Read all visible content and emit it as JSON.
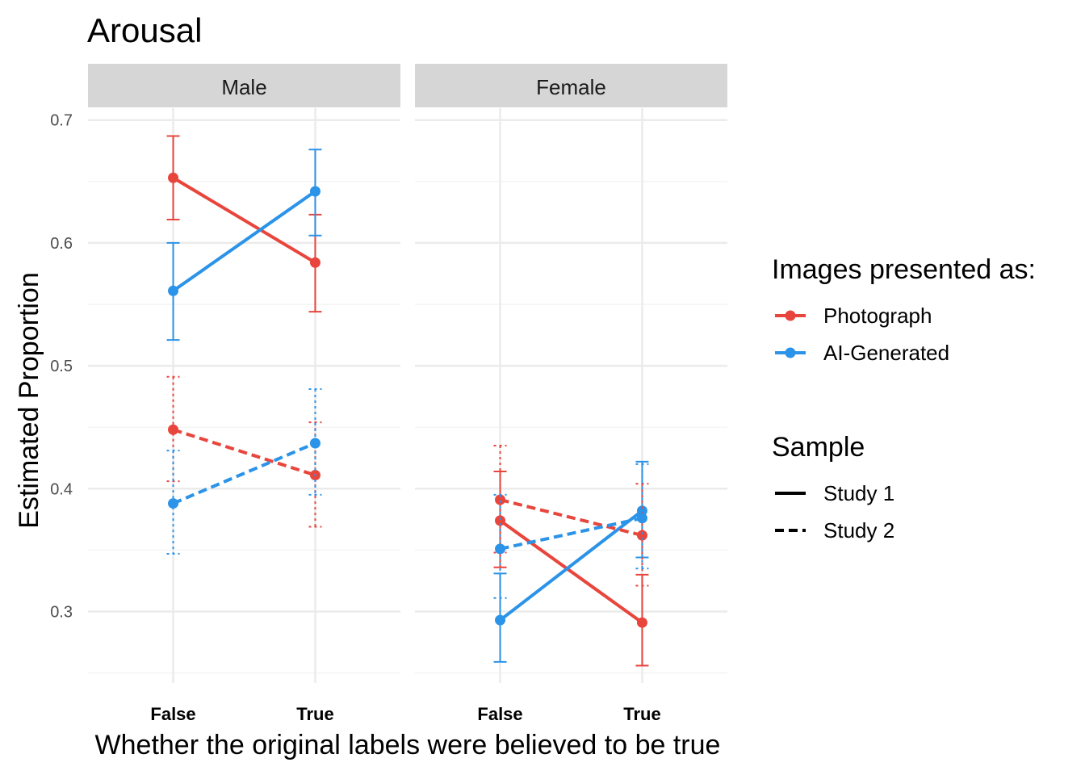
{
  "chart_data": {
    "type": "line",
    "title": "Arousal",
    "xlabel": "Whether the original labels were believed to be true",
    "ylabel": "Estimated Proportion",
    "ylim": [
      0.245,
      0.7
    ],
    "y_ticks": [
      0.3,
      0.4,
      0.5,
      0.6,
      0.7
    ],
    "y_tick_labels": [
      "0.3",
      "0.4",
      "0.5",
      "0.6",
      "0.7"
    ],
    "y_minor_ticks": [
      0.25,
      0.35,
      0.45,
      0.55,
      0.65
    ],
    "categories": [
      "False",
      "True"
    ],
    "grid": true,
    "panels": [
      "Male",
      "Female"
    ],
    "legend": {
      "placement": "right",
      "color_title": "Images presented as:",
      "color_items": [
        {
          "label": "Photograph",
          "color": "#E8453C"
        },
        {
          "label": "AI-Generated",
          "color": "#2B93E8"
        }
      ],
      "linetype_title": "Sample",
      "linetype_items": [
        {
          "label": "Study 1",
          "linetype": "solid"
        },
        {
          "label": "Study 2",
          "linetype": "dashed"
        }
      ]
    },
    "series": [
      {
        "panel": "Male",
        "image": "Photograph",
        "sample": "Study 1",
        "values": [
          0.653,
          0.584
        ],
        "lower": [
          0.619,
          0.544
        ],
        "upper": [
          0.687,
          0.623
        ]
      },
      {
        "panel": "Male",
        "image": "AI-Generated",
        "sample": "Study 1",
        "values": [
          0.561,
          0.642
        ],
        "lower": [
          0.521,
          0.606
        ],
        "upper": [
          0.6,
          0.676
        ]
      },
      {
        "panel": "Male",
        "image": "Photograph",
        "sample": "Study 2",
        "values": [
          0.448,
          0.411
        ],
        "lower": [
          0.406,
          0.369
        ],
        "upper": [
          0.491,
          0.454
        ]
      },
      {
        "panel": "Male",
        "image": "AI-Generated",
        "sample": "Study 2",
        "values": [
          0.388,
          0.437
        ],
        "lower": [
          0.347,
          0.395
        ],
        "upper": [
          0.431,
          0.481
        ]
      },
      {
        "panel": "Female",
        "image": "Photograph",
        "sample": "Study 1",
        "values": [
          0.374,
          0.291
        ],
        "lower": [
          0.336,
          0.256
        ],
        "upper": [
          0.414,
          0.33
        ]
      },
      {
        "panel": "Female",
        "image": "AI-Generated",
        "sample": "Study 1",
        "values": [
          0.293,
          0.382
        ],
        "lower": [
          0.259,
          0.344
        ],
        "upper": [
          0.331,
          0.422
        ]
      },
      {
        "panel": "Female",
        "image": "Photograph",
        "sample": "Study 2",
        "values": [
          0.391,
          0.362
        ],
        "lower": [
          0.348,
          0.321
        ],
        "upper": [
          0.435,
          0.404
        ]
      },
      {
        "panel": "Female",
        "image": "AI-Generated",
        "sample": "Study 2",
        "values": [
          0.351,
          0.376
        ],
        "lower": [
          0.311,
          0.335
        ],
        "upper": [
          0.395,
          0.42
        ]
      }
    ]
  }
}
